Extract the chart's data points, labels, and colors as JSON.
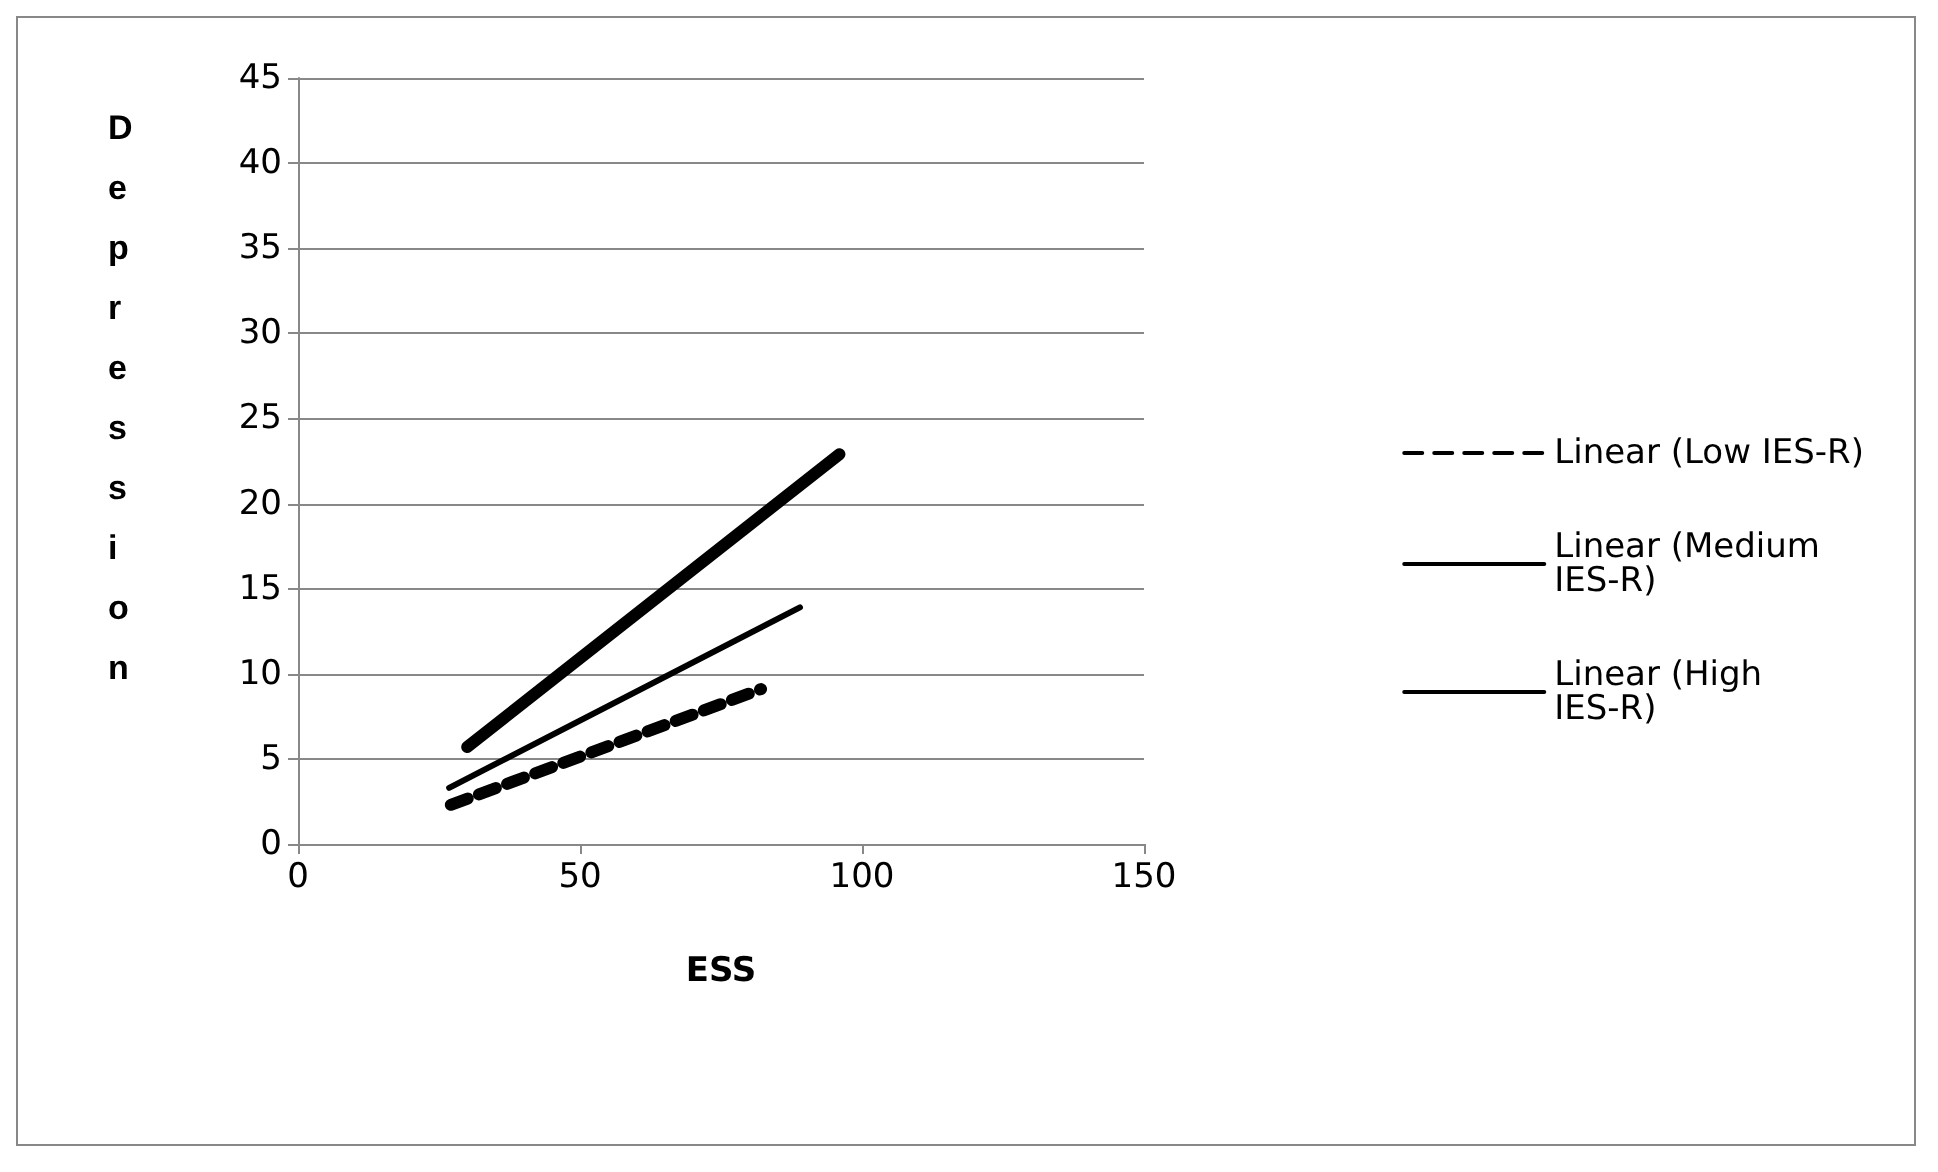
{
  "chart_data": {
    "type": "line",
    "xlabel": "ESS",
    "ylabel": "Depression",
    "xlim": [
      0,
      150
    ],
    "xticks": [
      0,
      50,
      100,
      150
    ],
    "ylim": [
      0,
      45
    ],
    "yticks": [
      0,
      5,
      10,
      15,
      20,
      25,
      30,
      35,
      40,
      45
    ],
    "grid": "y",
    "legend": "right",
    "marker": "none",
    "line_style": "solid",
    "series": [
      {
        "name": "Linear (Low IES-R)",
        "color": "#000000",
        "line_style": "dashed",
        "x": [
          27.1,
          82.1
        ],
        "values": [
          2.3,
          9.1
        ]
      },
      {
        "name": "Linear (Medium IES-R)",
        "color": "#000000",
        "x": [
          26.8,
          89
        ],
        "values": [
          3.3,
          13.9
        ]
      },
      {
        "name": "Linear (High IES-R)",
        "color": "#000000",
        "x": [
          30,
          96
        ],
        "values": [
          5.7,
          22.9
        ]
      }
    ]
  }
}
